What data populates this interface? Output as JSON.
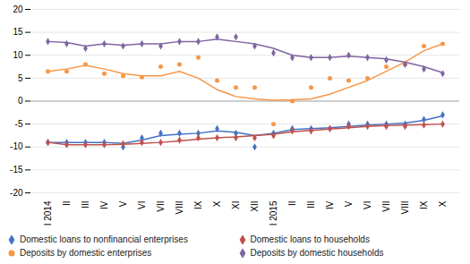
{
  "chart_data": {
    "type": "scatter",
    "categories": [
      "I 2014",
      "II",
      "III",
      "IV",
      "V",
      "VI",
      "VII",
      "VIII",
      "IX",
      "X",
      "XI",
      "XII",
      "I 2015",
      "II",
      "III",
      "IV",
      "V",
      "VI",
      "VII",
      "VIII",
      "IX",
      "X"
    ],
    "series": [
      {
        "name": "Domestic loans to nonfinancial enterprises",
        "color": "#4472C4",
        "marker": "diamond",
        "values": [
          -9,
          -9,
          -9,
          -9,
          -10,
          -8,
          -7,
          -7,
          -7,
          -6,
          -7,
          -10,
          -7,
          -6,
          -6,
          -6,
          -5,
          -5,
          -5,
          -5,
          -4,
          -3
        ],
        "trend_values": [
          -9,
          -9,
          -9,
          -9,
          -9.2,
          -8.5,
          -7.5,
          -7.2,
          -7,
          -6.5,
          -6.8,
          -7.5,
          -7,
          -6.2,
          -6,
          -5.8,
          -5.5,
          -5.2,
          -5,
          -4.8,
          -4.2,
          -3.2
        ]
      },
      {
        "name": "Domestic loans to households",
        "color": "#C0504D",
        "marker": "diamond",
        "values": [
          -9,
          -9.5,
          -9.5,
          -9.5,
          -9.3,
          -9,
          -9,
          -8.5,
          -8,
          -8,
          -8,
          -8,
          -7.5,
          -6.5,
          -6.5,
          -6,
          -5.5,
          -5.5,
          -5.5,
          -5.5,
          -5.2,
          -5
        ],
        "trend_values": [
          -9,
          -9.5,
          -9.5,
          -9.5,
          -9.4,
          -9.2,
          -9,
          -8.7,
          -8.3,
          -8,
          -7.8,
          -7.5,
          -7.2,
          -6.7,
          -6.4,
          -6.1,
          -5.8,
          -5.5,
          -5.3,
          -5.2,
          -5.1,
          -5
        ]
      },
      {
        "name": "Deposits by domestic enterprises",
        "color": "#F79646",
        "marker": "circle",
        "values": [
          6.5,
          6.5,
          8,
          6,
          5.5,
          5.2,
          7.5,
          8,
          9.5,
          4.5,
          3,
          3,
          -5,
          0,
          3,
          5,
          4.5,
          5,
          7.5,
          8,
          12,
          12.5
        ],
        "trend_values": [
          6.5,
          7,
          7.8,
          7,
          6,
          5.5,
          5.5,
          6.5,
          5,
          2.5,
          1,
          0.5,
          0.2,
          0.3,
          0.5,
          1.5,
          3,
          4.5,
          6.5,
          8.5,
          11,
          12.5
        ]
      },
      {
        "name": "Deposits by domestic households",
        "color": "#8064A2",
        "marker": "diamond",
        "values": [
          13,
          12.5,
          11.5,
          12.5,
          12,
          12.5,
          12,
          13,
          13,
          14,
          14,
          12,
          10.5,
          9.5,
          9.5,
          9.5,
          10,
          9.5,
          9,
          8,
          7,
          6
        ],
        "trend_values": [
          13,
          12.8,
          12,
          12.5,
          12.2,
          12.5,
          12.5,
          13,
          13,
          13.5,
          13,
          12.5,
          11.5,
          10,
          9.5,
          9.5,
          9.8,
          9.5,
          9.2,
          8.5,
          7.5,
          6.2
        ]
      }
    ],
    "ylim": [
      -20,
      20
    ],
    "yticks": [
      -20,
      -15,
      -10,
      -5,
      0,
      5,
      10,
      15,
      20
    ],
    "grid": true,
    "legend": "bottom"
  }
}
